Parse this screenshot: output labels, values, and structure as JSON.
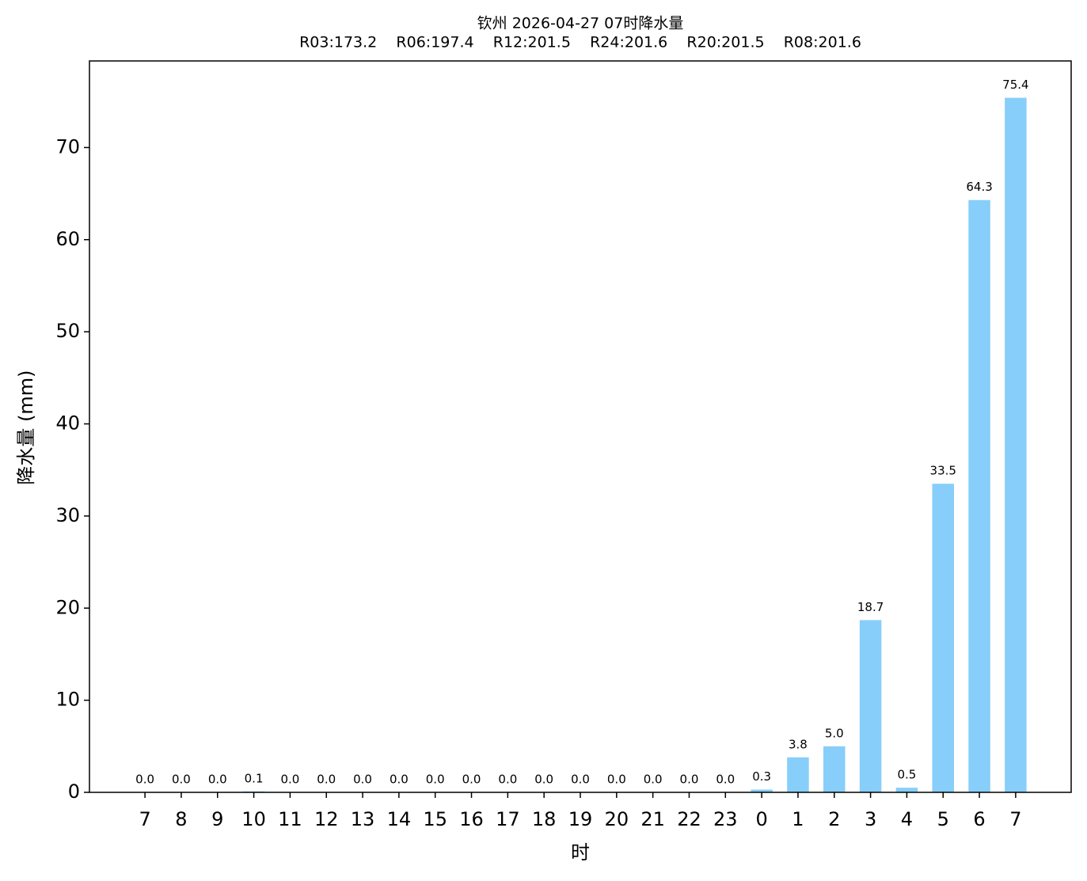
{
  "chart_data": {
    "type": "bar",
    "title": "钦州 2026-04-27 07时降水量",
    "subtitle": "R03:173.2    R06:197.4    R12:201.5    R24:201.6    R20:201.5    R08:201.6",
    "x_label": "时",
    "y_label": "降水量 (mm)",
    "categories": [
      "7",
      "8",
      "9",
      "10",
      "11",
      "12",
      "13",
      "14",
      "15",
      "16",
      "17",
      "18",
      "19",
      "20",
      "21",
      "22",
      "23",
      "0",
      "1",
      "2",
      "3",
      "4",
      "5",
      "6",
      "7"
    ],
    "values": [
      0.0,
      0.0,
      0.0,
      0.1,
      0.0,
      0.0,
      0.0,
      0.0,
      0.0,
      0.0,
      0.0,
      0.0,
      0.0,
      0.0,
      0.0,
      0.0,
      0.0,
      0.3,
      3.8,
      5.0,
      18.7,
      0.5,
      33.5,
      64.3,
      75.4
    ],
    "value_labels": [
      "0.0",
      "0.0",
      "0.0",
      "0.1",
      "0.0",
      "0.0",
      "0.0",
      "0.0",
      "0.0",
      "0.0",
      "0.0",
      "0.0",
      "0.0",
      "0.0",
      "0.0",
      "0.0",
      "0.0",
      "0.3",
      "3.8",
      "5.0",
      "18.7",
      "0.5",
      "33.5",
      "64.3",
      "75.4"
    ],
    "color": "#87cefa",
    "ylim": [
      0,
      79.4
    ],
    "yticks": [
      0,
      10,
      20,
      30,
      40,
      50,
      60,
      70
    ],
    "grid": false
  }
}
